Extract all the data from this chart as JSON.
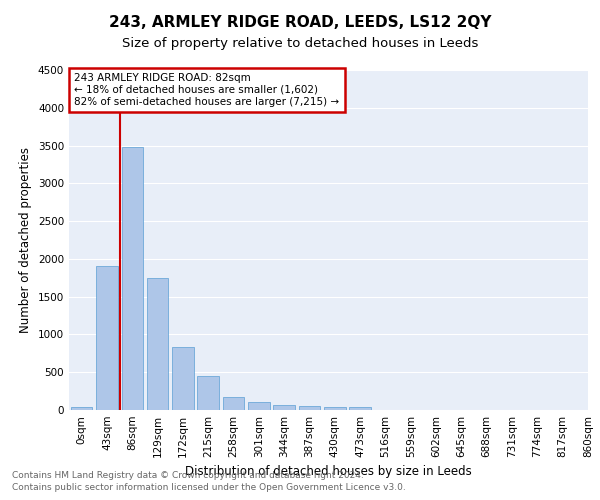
{
  "title": "243, ARMLEY RIDGE ROAD, LEEDS, LS12 2QY",
  "subtitle": "Size of property relative to detached houses in Leeds",
  "xlabel": "Distribution of detached houses by size in Leeds",
  "ylabel": "Number of detached properties",
  "bin_labels": [
    "0sqm",
    "43sqm",
    "86sqm",
    "129sqm",
    "172sqm",
    "215sqm",
    "258sqm",
    "301sqm",
    "344sqm",
    "387sqm",
    "430sqm",
    "473sqm",
    "516sqm",
    "559sqm",
    "602sqm",
    "645sqm",
    "688sqm",
    "731sqm",
    "774sqm",
    "817sqm",
    "860sqm"
  ],
  "bar_values": [
    40,
    1900,
    3480,
    1750,
    840,
    450,
    170,
    100,
    60,
    50,
    40,
    40,
    0,
    0,
    0,
    0,
    0,
    0,
    0,
    0
  ],
  "bar_color": "#aec6e8",
  "bar_edge_color": "#5a9fd4",
  "bg_color": "#e8eef8",
  "grid_color": "#ffffff",
  "property_line_color": "#cc0000",
  "ylim_max": 4500,
  "yticks": [
    0,
    500,
    1000,
    1500,
    2000,
    2500,
    3000,
    3500,
    4000,
    4500
  ],
  "annotation_title": "243 ARMLEY RIDGE ROAD: 82sqm",
  "annotation_line1": "← 18% of detached houses are smaller (1,602)",
  "annotation_line2": "82% of semi-detached houses are larger (7,215) →",
  "annotation_box_color": "#cc0000",
  "footer_line1": "Contains HM Land Registry data © Crown copyright and database right 2024.",
  "footer_line2": "Contains public sector information licensed under the Open Government Licence v3.0.",
  "title_fontsize": 11,
  "subtitle_fontsize": 9.5,
  "axis_label_fontsize": 8.5,
  "tick_fontsize": 7.5,
  "footer_fontsize": 6.5
}
